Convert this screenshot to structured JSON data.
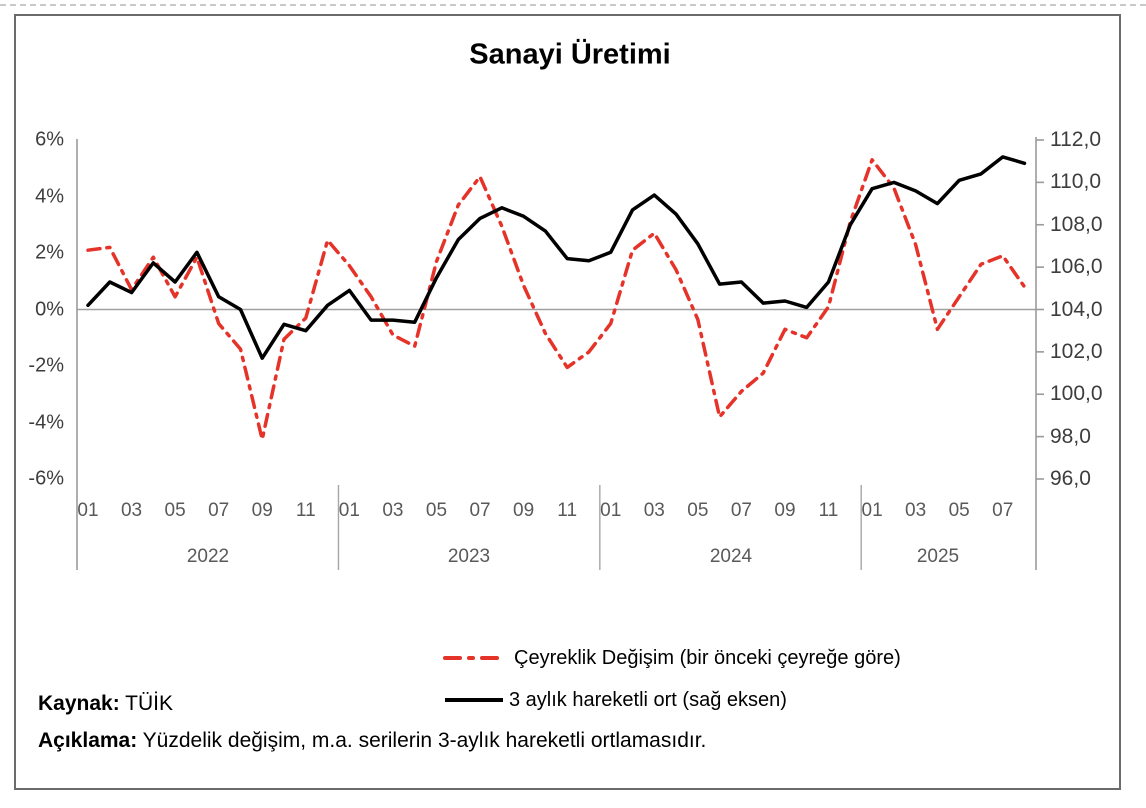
{
  "frame": {
    "title": "Sanayi Üretimi"
  },
  "legend": [
    {
      "label": "Çeyreklik Değişim (bir önceki çeyreğe göre)",
      "color": "#e63329",
      "style": "dash-dot"
    },
    {
      "label": "3 aylık hareketli ort (sağ eksen)",
      "color": "#000000",
      "style": "solid"
    }
  ],
  "footer": {
    "source_label": "Kaynak:",
    "source_value": " TÜİK",
    "note_label": "Açıklama:",
    "note_value": " Yüzdelik değişim, m.a. serilerin 3-aylık hareketli ortlamasıdır."
  },
  "chart_data": {
    "type": "line",
    "title": "Sanayi Üretimi",
    "months": [
      "2022-01",
      "2022-02",
      "2022-03",
      "2022-04",
      "2022-05",
      "2022-06",
      "2022-07",
      "2022-08",
      "2022-09",
      "2022-10",
      "2022-11",
      "2022-12",
      "2023-01",
      "2023-02",
      "2023-03",
      "2023-04",
      "2023-05",
      "2023-06",
      "2023-07",
      "2023-08",
      "2023-09",
      "2023-10",
      "2023-11",
      "2023-12",
      "2024-01",
      "2024-02",
      "2024-03",
      "2024-04",
      "2024-05",
      "2024-06",
      "2024-07",
      "2024-08",
      "2024-09",
      "2024-10",
      "2024-11",
      "2024-12",
      "2025-01",
      "2025-02",
      "2025-03",
      "2025-04",
      "2025-05",
      "2025-06",
      "2025-07",
      "2025-08"
    ],
    "x_axis": {
      "years": [
        {
          "label": "2022",
          "month_labels": [
            "01",
            "03",
            "05",
            "07",
            "09",
            "11"
          ]
        },
        {
          "label": "2023",
          "month_labels": [
            "01",
            "03",
            "05",
            "07",
            "09",
            "11"
          ]
        },
        {
          "label": "2024",
          "month_labels": [
            "01",
            "03",
            "05",
            "07",
            "09",
            "11"
          ]
        },
        {
          "label": "2025",
          "month_labels": [
            "01",
            "03",
            "05",
            "07"
          ]
        }
      ]
    },
    "left_axis": {
      "min": -6,
      "max": 6,
      "tick_step": 2,
      "tick_labels": [
        "6%",
        "4%",
        "2%",
        "0%",
        "-2%",
        "-4%",
        "-6%"
      ]
    },
    "right_axis": {
      "min": 96,
      "max": 112,
      "tick_step": 2,
      "tick_labels": [
        "112,0",
        "110,0",
        "108,0",
        "106,0",
        "104,0",
        "102,0",
        "100,0",
        "98,0",
        "96,0"
      ]
    },
    "grid": "zero-line-only",
    "legend_position": "bottom",
    "series": [
      {
        "name": "Çeyreklik Değişim (bir önceki çeyreğe göre)",
        "axis": "left",
        "color": "#e63329",
        "line_style": "dash-dot",
        "values": [
          2.1,
          2.2,
          0.7,
          1.85,
          0.45,
          1.85,
          -0.5,
          -1.4,
          -4.6,
          -1.05,
          -0.3,
          2.45,
          1.55,
          0.45,
          -0.9,
          -1.3,
          1.7,
          3.7,
          4.7,
          2.95,
          0.85,
          -0.85,
          -2.05,
          -1.5,
          -0.5,
          2.1,
          2.7,
          1.4,
          -0.35,
          -3.8,
          -2.9,
          -2.25,
          -0.7,
          -1.0,
          0.1,
          3.1,
          5.3,
          4.3,
          2.3,
          -0.7,
          0.45,
          1.6,
          1.9,
          0.8
        ]
      },
      {
        "name": "3 aylık hareketli ort (sağ eksen)",
        "axis": "right",
        "color": "#000000",
        "line_style": "solid",
        "values": [
          104.2,
          105.3,
          104.8,
          106.2,
          105.3,
          106.7,
          104.6,
          104.0,
          101.7,
          103.3,
          103.0,
          104.2,
          104.9,
          103.5,
          103.5,
          103.4,
          105.5,
          107.3,
          108.3,
          108.8,
          108.4,
          107.7,
          106.4,
          106.3,
          106.7,
          108.7,
          109.4,
          108.5,
          107.1,
          105.2,
          105.3,
          104.3,
          104.4,
          104.1,
          105.3,
          108.0,
          109.7,
          110.0,
          109.6,
          109.0,
          110.1,
          110.4,
          111.2,
          110.9
        ]
      }
    ]
  }
}
